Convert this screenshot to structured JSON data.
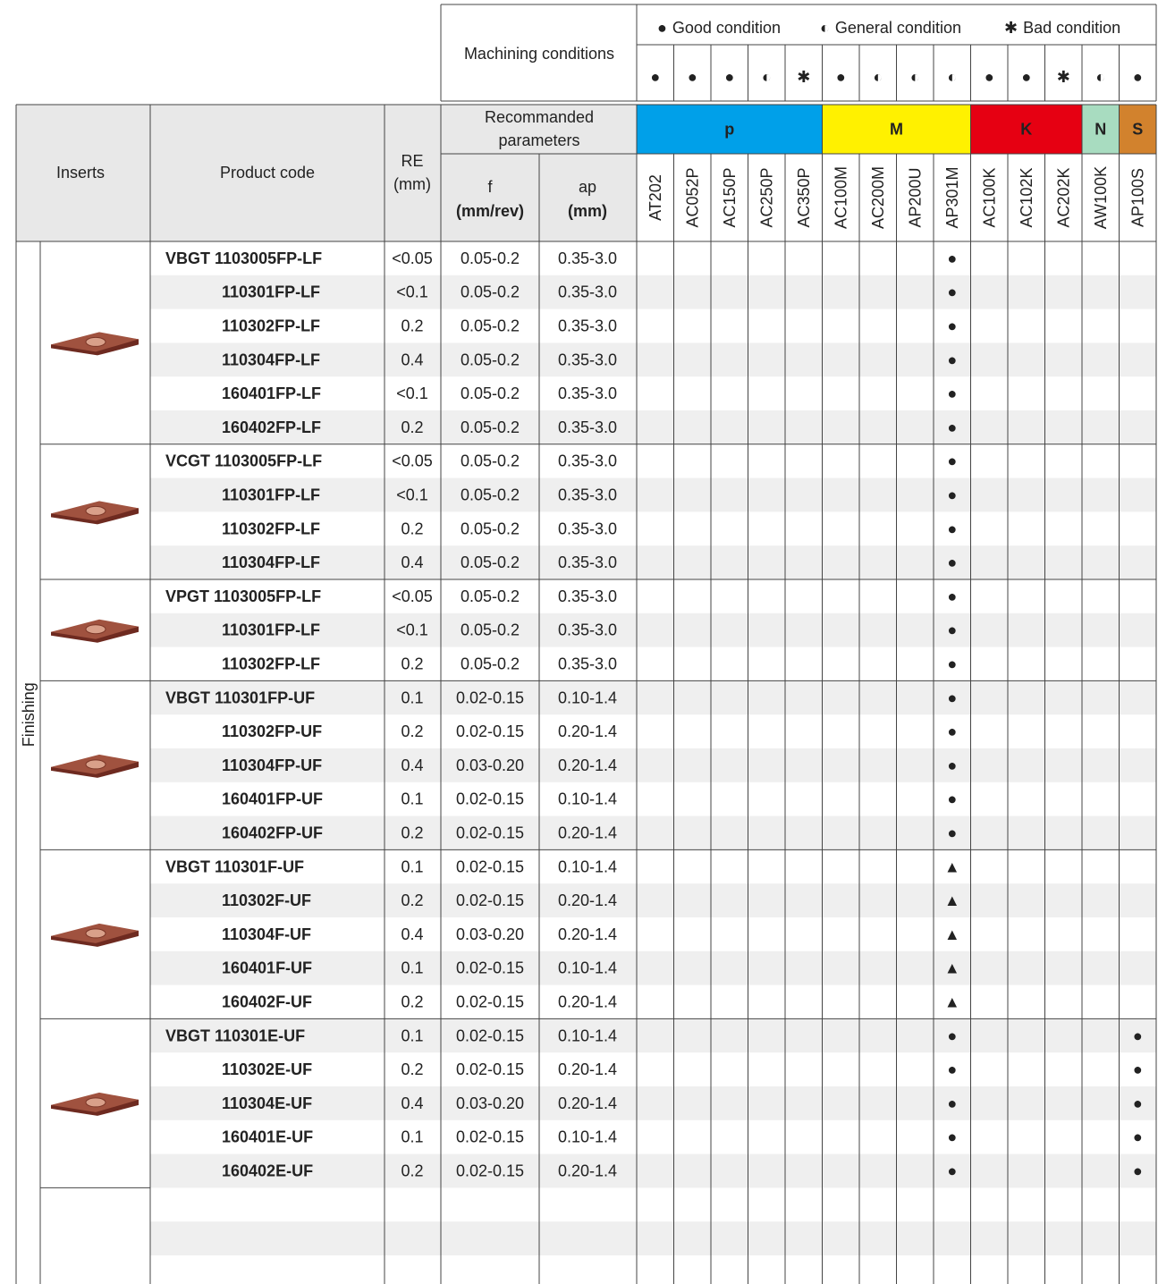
{
  "legend": [
    {
      "symbol": "●",
      "label": "Good condition"
    },
    {
      "symbol": "◐",
      "label": "General condition"
    },
    {
      "symbol": "✱",
      "label": "Bad condition"
    }
  ],
  "machining_conditions": {
    "title": "Machining conditions",
    "symbols": [
      "●",
      "●",
      "●",
      "◐",
      "✱",
      "●",
      "◐",
      "◐",
      "◐",
      "●",
      "●",
      "✱",
      "◐",
      "●"
    ]
  },
  "header": {
    "inserts": "Inserts",
    "product_code": "Product code",
    "re": [
      "RE",
      "(mm)"
    ],
    "recommended": [
      "Recommanded",
      "parameters"
    ],
    "f": [
      "f",
      "(mm/rev)"
    ],
    "ap": [
      "ap",
      "(mm)"
    ]
  },
  "materials": [
    {
      "name": "p",
      "color": "#00a0e9",
      "grades": [
        "AT202",
        "AC052P",
        "AC150P",
        "AC250P",
        "AC350P"
      ]
    },
    {
      "name": "M",
      "color": "#fff100",
      "grades": [
        "AC100M",
        "AC200M",
        "AP200U",
        "AP301M"
      ]
    },
    {
      "name": "K",
      "color": "#e60012",
      "grades": [
        "AC100K",
        "AC102K",
        "AC202K"
      ]
    },
    {
      "name": "N",
      "color": "#a8dcc0",
      "grades": [
        "AW100K"
      ]
    },
    {
      "name": "S",
      "color": "#d2822d",
      "grades": [
        "AP100S"
      ]
    }
  ],
  "category": "Finishing",
  "groups": [
    {
      "rows": [
        {
          "code": "VBGT 1103005FP-LF",
          "re": "<0.05",
          "f": "0.05-0.2",
          "ap": "0.35-3.0",
          "marks": [
            null,
            null,
            null,
            null,
            null,
            null,
            null,
            null,
            "●",
            null,
            null,
            null,
            null,
            null
          ]
        },
        {
          "code": "110301FP-LF",
          "re": "<0.1",
          "f": "0.05-0.2",
          "ap": "0.35-3.0",
          "marks": [
            null,
            null,
            null,
            null,
            null,
            null,
            null,
            null,
            "●",
            null,
            null,
            null,
            null,
            null
          ]
        },
        {
          "code": "110302FP-LF",
          "re": "0.2",
          "f": "0.05-0.2",
          "ap": "0.35-3.0",
          "marks": [
            null,
            null,
            null,
            null,
            null,
            null,
            null,
            null,
            "●",
            null,
            null,
            null,
            null,
            null
          ]
        },
        {
          "code": "110304FP-LF",
          "re": "0.4",
          "f": "0.05-0.2",
          "ap": "0.35-3.0",
          "marks": [
            null,
            null,
            null,
            null,
            null,
            null,
            null,
            null,
            "●",
            null,
            null,
            null,
            null,
            null
          ]
        },
        {
          "code": "160401FP-LF",
          "re": "<0.1",
          "f": "0.05-0.2",
          "ap": "0.35-3.0",
          "marks": [
            null,
            null,
            null,
            null,
            null,
            null,
            null,
            null,
            "●",
            null,
            null,
            null,
            null,
            null
          ]
        },
        {
          "code": "160402FP-LF",
          "re": "0.2",
          "f": "0.05-0.2",
          "ap": "0.35-3.0",
          "marks": [
            null,
            null,
            null,
            null,
            null,
            null,
            null,
            null,
            "●",
            null,
            null,
            null,
            null,
            null
          ]
        }
      ]
    },
    {
      "rows": [
        {
          "code": "VCGT 1103005FP-LF",
          "re": "<0.05",
          "f": "0.05-0.2",
          "ap": "0.35-3.0",
          "marks": [
            null,
            null,
            null,
            null,
            null,
            null,
            null,
            null,
            "●",
            null,
            null,
            null,
            null,
            null
          ]
        },
        {
          "code": "110301FP-LF",
          "re": "<0.1",
          "f": "0.05-0.2",
          "ap": "0.35-3.0",
          "marks": [
            null,
            null,
            null,
            null,
            null,
            null,
            null,
            null,
            "●",
            null,
            null,
            null,
            null,
            null
          ]
        },
        {
          "code": "110302FP-LF",
          "re": "0.2",
          "f": "0.05-0.2",
          "ap": "0.35-3.0",
          "marks": [
            null,
            null,
            null,
            null,
            null,
            null,
            null,
            null,
            "●",
            null,
            null,
            null,
            null,
            null
          ]
        },
        {
          "code": "110304FP-LF",
          "re": "0.4",
          "f": "0.05-0.2",
          "ap": "0.35-3.0",
          "marks": [
            null,
            null,
            null,
            null,
            null,
            null,
            null,
            null,
            "●",
            null,
            null,
            null,
            null,
            null
          ]
        }
      ]
    },
    {
      "rows": [
        {
          "code": "VPGT 1103005FP-LF",
          "re": "<0.05",
          "f": "0.05-0.2",
          "ap": "0.35-3.0",
          "marks": [
            null,
            null,
            null,
            null,
            null,
            null,
            null,
            null,
            "●",
            null,
            null,
            null,
            null,
            null
          ]
        },
        {
          "code": "110301FP-LF",
          "re": "<0.1",
          "f": "0.05-0.2",
          "ap": "0.35-3.0",
          "marks": [
            null,
            null,
            null,
            null,
            null,
            null,
            null,
            null,
            "●",
            null,
            null,
            null,
            null,
            null
          ]
        },
        {
          "code": "110302FP-LF",
          "re": "0.2",
          "f": "0.05-0.2",
          "ap": "0.35-3.0",
          "marks": [
            null,
            null,
            null,
            null,
            null,
            null,
            null,
            null,
            "●",
            null,
            null,
            null,
            null,
            null
          ]
        }
      ]
    },
    {
      "rows": [
        {
          "code": "VBGT 110301FP-UF",
          "re": "0.1",
          "f": "0.02-0.15",
          "ap": "0.10-1.4",
          "marks": [
            null,
            null,
            null,
            null,
            null,
            null,
            null,
            null,
            "●",
            null,
            null,
            null,
            null,
            null
          ]
        },
        {
          "code": "110302FP-UF",
          "re": "0.2",
          "f": "0.02-0.15",
          "ap": "0.20-1.4",
          "marks": [
            null,
            null,
            null,
            null,
            null,
            null,
            null,
            null,
            "●",
            null,
            null,
            null,
            null,
            null
          ]
        },
        {
          "code": "110304FP-UF",
          "re": "0.4",
          "f": "0.03-0.20",
          "ap": "0.20-1.4",
          "marks": [
            null,
            null,
            null,
            null,
            null,
            null,
            null,
            null,
            "●",
            null,
            null,
            null,
            null,
            null
          ]
        },
        {
          "code": "160401FP-UF",
          "re": "0.1",
          "f": "0.02-0.15",
          "ap": "0.10-1.4",
          "marks": [
            null,
            null,
            null,
            null,
            null,
            null,
            null,
            null,
            "●",
            null,
            null,
            null,
            null,
            null
          ]
        },
        {
          "code": "160402FP-UF",
          "re": "0.2",
          "f": "0.02-0.15",
          "ap": "0.20-1.4",
          "marks": [
            null,
            null,
            null,
            null,
            null,
            null,
            null,
            null,
            "●",
            null,
            null,
            null,
            null,
            null
          ]
        }
      ]
    },
    {
      "rows": [
        {
          "code": "VBGT 110301F-UF",
          "re": "0.1",
          "f": "0.02-0.15",
          "ap": "0.10-1.4",
          "marks": [
            null,
            null,
            null,
            null,
            null,
            null,
            null,
            null,
            "▲",
            null,
            null,
            null,
            null,
            null
          ]
        },
        {
          "code": "110302F-UF",
          "re": "0.2",
          "f": "0.02-0.15",
          "ap": "0.20-1.4",
          "marks": [
            null,
            null,
            null,
            null,
            null,
            null,
            null,
            null,
            "▲",
            null,
            null,
            null,
            null,
            null
          ]
        },
        {
          "code": "110304F-UF",
          "re": "0.4",
          "f": "0.03-0.20",
          "ap": "0.20-1.4",
          "marks": [
            null,
            null,
            null,
            null,
            null,
            null,
            null,
            null,
            "▲",
            null,
            null,
            null,
            null,
            null
          ]
        },
        {
          "code": "160401F-UF",
          "re": "0.1",
          "f": "0.02-0.15",
          "ap": "0.10-1.4",
          "marks": [
            null,
            null,
            null,
            null,
            null,
            null,
            null,
            null,
            "▲",
            null,
            null,
            null,
            null,
            null
          ]
        },
        {
          "code": "160402F-UF",
          "re": "0.2",
          "f": "0.02-0.15",
          "ap": "0.20-1.4",
          "marks": [
            null,
            null,
            null,
            null,
            null,
            null,
            null,
            null,
            "▲",
            null,
            null,
            null,
            null,
            null
          ]
        }
      ]
    },
    {
      "rows": [
        {
          "code": "VBGT 110301E-UF",
          "re": "0.1",
          "f": "0.02-0.15",
          "ap": "0.10-1.4",
          "marks": [
            null,
            null,
            null,
            null,
            null,
            null,
            null,
            null,
            "●",
            null,
            null,
            null,
            null,
            "●"
          ]
        },
        {
          "code": "110302E-UF",
          "re": "0.2",
          "f": "0.02-0.15",
          "ap": "0.20-1.4",
          "marks": [
            null,
            null,
            null,
            null,
            null,
            null,
            null,
            null,
            "●",
            null,
            null,
            null,
            null,
            "●"
          ]
        },
        {
          "code": "110304E-UF",
          "re": "0.4",
          "f": "0.03-0.20",
          "ap": "0.20-1.4",
          "marks": [
            null,
            null,
            null,
            null,
            null,
            null,
            null,
            null,
            "●",
            null,
            null,
            null,
            null,
            "●"
          ]
        },
        {
          "code": "160401E-UF",
          "re": "0.1",
          "f": "0.02-0.15",
          "ap": "0.10-1.4",
          "marks": [
            null,
            null,
            null,
            null,
            null,
            null,
            null,
            null,
            "●",
            null,
            null,
            null,
            null,
            "●"
          ]
        },
        {
          "code": "160402E-UF",
          "re": "0.2",
          "f": "0.02-0.15",
          "ap": "0.20-1.4",
          "marks": [
            null,
            null,
            null,
            null,
            null,
            null,
            null,
            null,
            "●",
            null,
            null,
            null,
            null,
            "●"
          ]
        }
      ]
    }
  ]
}
